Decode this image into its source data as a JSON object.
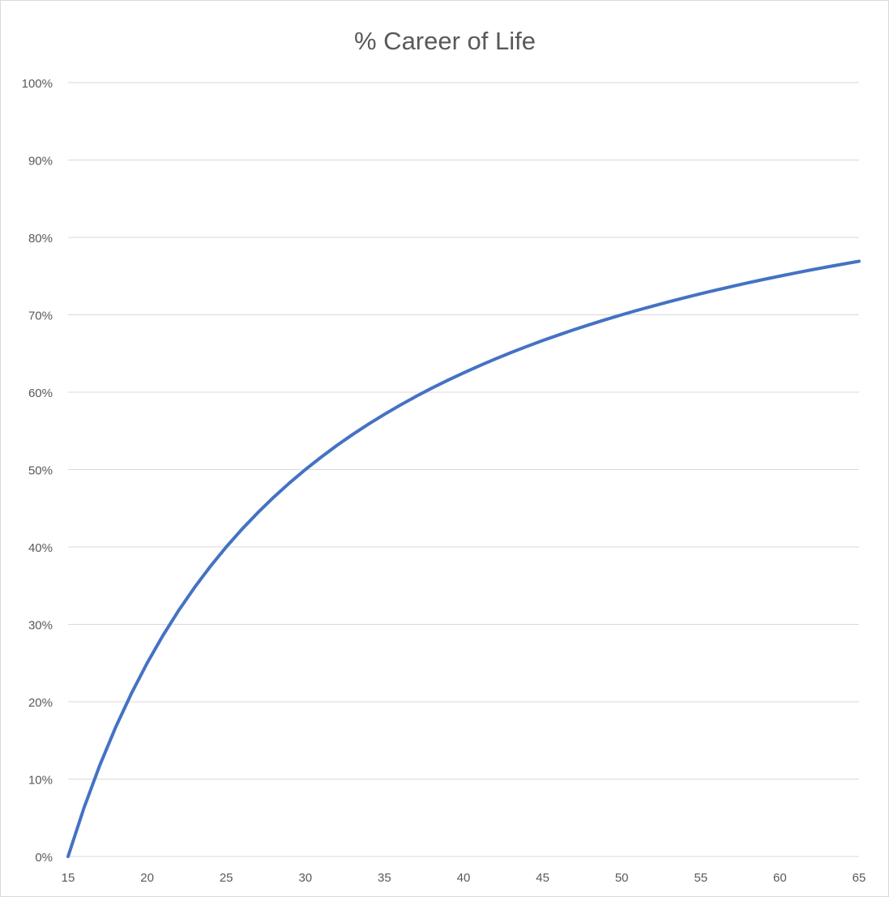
{
  "chart_data": {
    "type": "line",
    "title": "% Career of Life",
    "xlabel": "",
    "ylabel": "",
    "xlim": [
      15,
      65
    ],
    "ylim": [
      0,
      1
    ],
    "x_ticks": [
      "15",
      "20",
      "25",
      "30",
      "35",
      "40",
      "45",
      "50",
      "55",
      "60",
      "65"
    ],
    "y_ticks": [
      "0%",
      "10%",
      "20%",
      "30%",
      "40%",
      "50%",
      "60%",
      "70%",
      "80%",
      "90%",
      "100%"
    ],
    "grid": "horizontal",
    "legend": "none",
    "series": [
      {
        "color": "#4472c4",
        "x": [
          15,
          16,
          17,
          18,
          19,
          20,
          21,
          22,
          23,
          24,
          25,
          26,
          27,
          28,
          29,
          30,
          31,
          32,
          33,
          34,
          35,
          36,
          37,
          38,
          39,
          40,
          41,
          42,
          43,
          44,
          45,
          46,
          47,
          48,
          49,
          50,
          51,
          52,
          53,
          54,
          55,
          56,
          57,
          58,
          59,
          60,
          61,
          62,
          63,
          64,
          65
        ],
        "values": [
          0.0,
          0.0625,
          0.1176,
          0.1667,
          0.2105,
          0.25,
          0.2857,
          0.3182,
          0.3478,
          0.375,
          0.4,
          0.4231,
          0.4444,
          0.4643,
          0.4828,
          0.5,
          0.5161,
          0.5313,
          0.5455,
          0.5588,
          0.5714,
          0.5833,
          0.5946,
          0.6053,
          0.6154,
          0.625,
          0.6341,
          0.6429,
          0.6512,
          0.6591,
          0.6667,
          0.6739,
          0.6809,
          0.6875,
          0.6939,
          0.7,
          0.7059,
          0.7115,
          0.717,
          0.7222,
          0.7273,
          0.7321,
          0.7368,
          0.7414,
          0.7458,
          0.75,
          0.7541,
          0.7581,
          0.7619,
          0.7656,
          0.7692
        ]
      }
    ]
  }
}
